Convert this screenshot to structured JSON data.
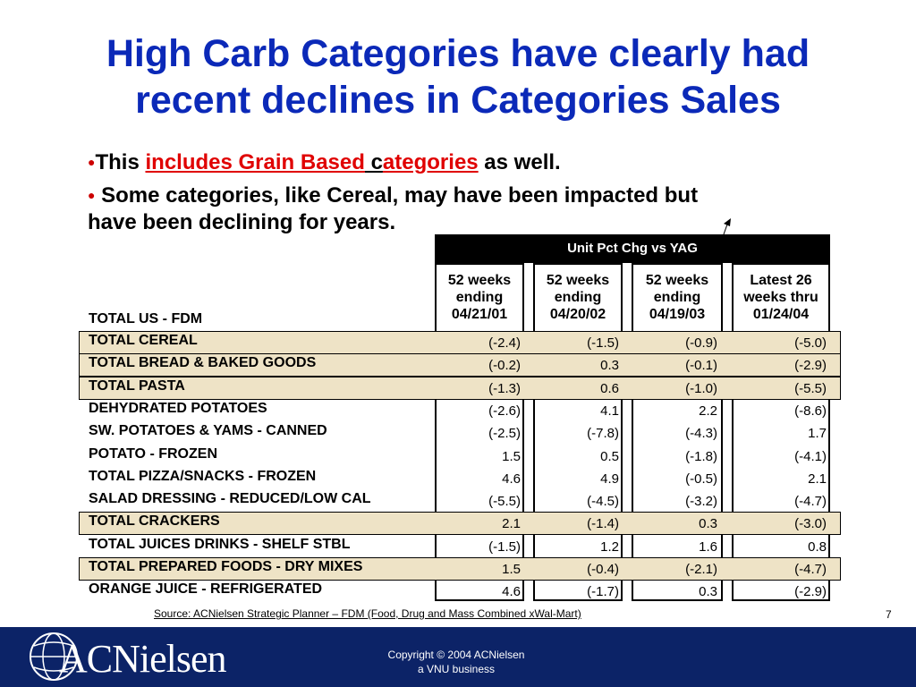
{
  "title_line1": "High Carb Categories have clearly had",
  "title_line2": "recent declines in Categories Sales",
  "bullet1": {
    "prefix": "This ",
    "link": "includes Grain Based",
    "mid": " c",
    "link2": "ategories",
    "suffix": " as well."
  },
  "bullet2_line1": " Some categories, like Cereal, may have been impacted but",
  "bullet2_line2": "have been declining for years.",
  "table": {
    "header": "Unit Pct Chg vs YAG",
    "total_label": "TOTAL US - FDM",
    "columns": [
      {
        "l1": "52 weeks",
        "l2": "ending",
        "l3": "04/21/01"
      },
      {
        "l1": "52 weeks",
        "l2": "ending",
        "l3": "04/20/02"
      },
      {
        "l1": "52 weeks",
        "l2": "ending",
        "l3": "04/19/03"
      },
      {
        "l1": "Latest 26",
        "l2": "weeks thru",
        "l3": "01/24/04"
      }
    ],
    "rows": [
      {
        "label": "TOTAL CEREAL",
        "values": [
          "(-2.4)",
          "(-1.5)",
          "(-0.9)",
          "(-5.0)"
        ],
        "highlight": true
      },
      {
        "label": "TOTAL BREAD & BAKED GOODS",
        "values": [
          "(-0.2)",
          "0.3",
          "(-0.1)",
          "(-2.9)"
        ],
        "highlight": true
      },
      {
        "label": "TOTAL PASTA",
        "values": [
          "(-1.3)",
          "0.6",
          "(-1.0)",
          "(-5.5)"
        ],
        "highlight": true
      },
      {
        "label": "DEHYDRATED POTATOES",
        "values": [
          "(-2.6)",
          "4.1",
          "2.2",
          "(-8.6)"
        ],
        "highlight": false
      },
      {
        "label": "SW. POTATOES & YAMS - CANNED",
        "values": [
          "(-2.5)",
          "(-7.8)",
          "(-4.3)",
          "1.7"
        ],
        "highlight": false
      },
      {
        "label": "POTATO - FROZEN",
        "values": [
          "1.5",
          "0.5",
          "(-1.8)",
          "(-4.1)"
        ],
        "highlight": false
      },
      {
        "label": "TOTAL PIZZA/SNACKS - FROZEN",
        "values": [
          "4.6",
          "4.9",
          "(-0.5)",
          "2.1"
        ],
        "highlight": false
      },
      {
        "label": "SALAD DRESSING - REDUCED/LOW CAL",
        "values": [
          "(-5.5)",
          "(-4.5)",
          "(-3.2)",
          "(-4.7)"
        ],
        "highlight": false
      },
      {
        "label": "TOTAL CRACKERS",
        "values": [
          "2.1",
          "(-1.4)",
          "0.3",
          "(-3.0)"
        ],
        "highlight": true
      },
      {
        "label": "TOTAL JUICES DRINKS - SHELF STBL",
        "values": [
          "(-1.5)",
          "1.2",
          "1.6",
          "0.8"
        ],
        "highlight": false
      },
      {
        "label": "TOTAL PREPARED FOODS - DRY MIXES",
        "values": [
          "1.5",
          "(-0.4)",
          "(-2.1)",
          "(-4.7)"
        ],
        "highlight": true
      },
      {
        "label": "ORANGE JUICE - REFRIGERATED",
        "values": [
          "4.6",
          "(-1.7)",
          "0.3",
          "(-2.9)"
        ],
        "highlight": false
      }
    ]
  },
  "source": "Source: ACNielsen Strategic Planner – FDM (Food, Drug and Mass Combined xWal-Mart)",
  "page_number": "7",
  "footer": {
    "logo": "ACNielsen",
    "copyright_line1": "Copyright © 2004 ACNielsen",
    "copyright_line2": "a VNU business"
  }
}
